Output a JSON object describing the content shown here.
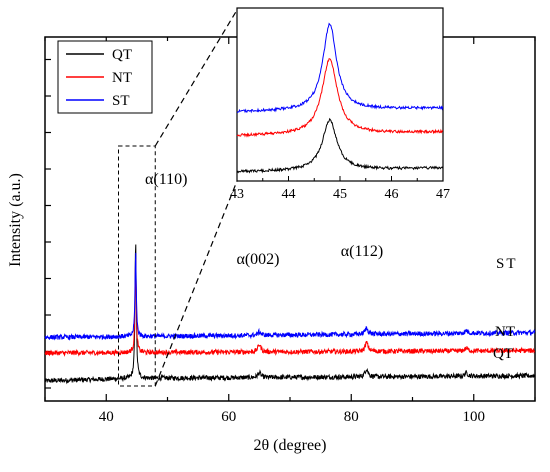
{
  "chart_data": {
    "type": "line",
    "xlabel": "2θ (degree)",
    "ylabel": "Intensity (a.u.)",
    "xlim": [
      30,
      110
    ],
    "x_ticks": [
      40,
      60,
      80,
      100
    ],
    "y_ticks_shown": false,
    "legend": {
      "placement": "top-left",
      "entries": [
        "QT",
        "NT",
        "ST"
      ]
    },
    "series": [
      {
        "name": "QT",
        "color": "#000000",
        "baseline": 0.12,
        "slope": 0.045,
        "peaks": [
          [
            44.8,
            2.05
          ],
          [
            65.0,
            0.07
          ],
          [
            82.5,
            0.12
          ],
          [
            98.8,
            0.05
          ]
        ]
      },
      {
        "name": "NT",
        "color": "#ff0000",
        "baseline": 0.5,
        "slope": 0.035,
        "peaks": [
          [
            44.8,
            1.4
          ],
          [
            65.0,
            0.11
          ],
          [
            82.5,
            0.13
          ],
          [
            98.8,
            0.04
          ]
        ]
      },
      {
        "name": "ST",
        "color": "#0000ff",
        "baseline": 0.73,
        "slope": 0.07,
        "peaks": [
          [
            44.8,
            1.25
          ],
          [
            65.0,
            0.05
          ],
          [
            82.5,
            0.09
          ],
          [
            98.8,
            0.04
          ]
        ]
      }
    ],
    "series_labels": [
      "ST",
      "NT",
      "QT"
    ],
    "peak_labels": [
      {
        "text": "α(110)",
        "x": 45
      },
      {
        "text": "α(002)",
        "x": 65
      },
      {
        "text": "α(112)",
        "x": 82.5
      }
    ],
    "inset": {
      "xlim": [
        43,
        47
      ],
      "x_ticks": [
        43,
        44,
        45,
        46,
        47
      ],
      "zoom_window": [
        42,
        48
      ],
      "peak_center": 44.8
    }
  }
}
